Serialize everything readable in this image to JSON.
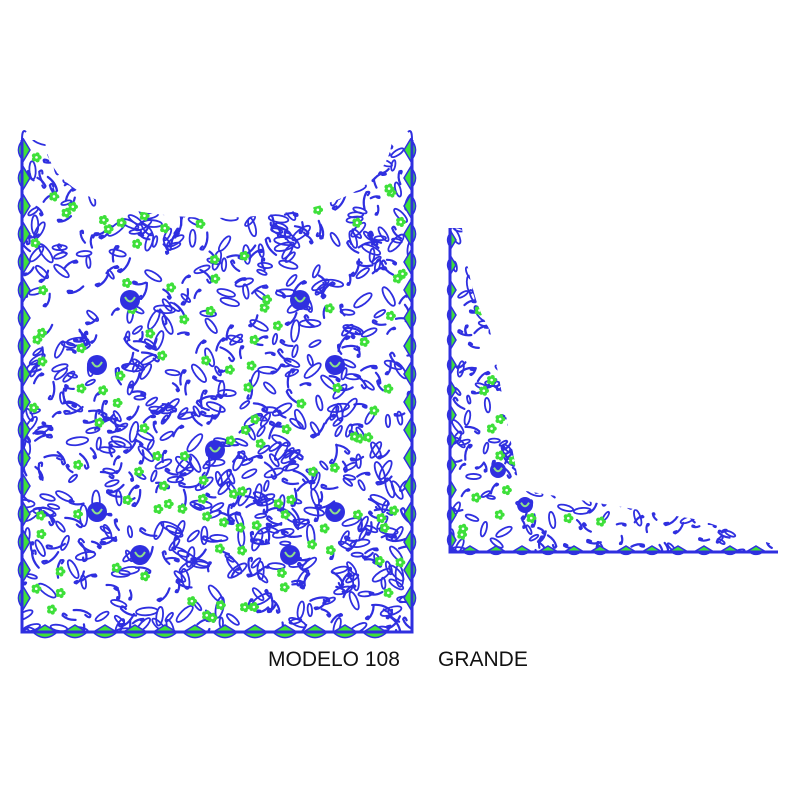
{
  "caption": {
    "model": "MODELO 108",
    "size": "GRANDE"
  },
  "colors": {
    "thread_blue": "#2f2fe0",
    "thread_green": "#3ee03a",
    "background": "#ffffff"
  },
  "designs": [
    {
      "shape": "neckline-panel"
    },
    {
      "shape": "corner-triangle"
    }
  ]
}
